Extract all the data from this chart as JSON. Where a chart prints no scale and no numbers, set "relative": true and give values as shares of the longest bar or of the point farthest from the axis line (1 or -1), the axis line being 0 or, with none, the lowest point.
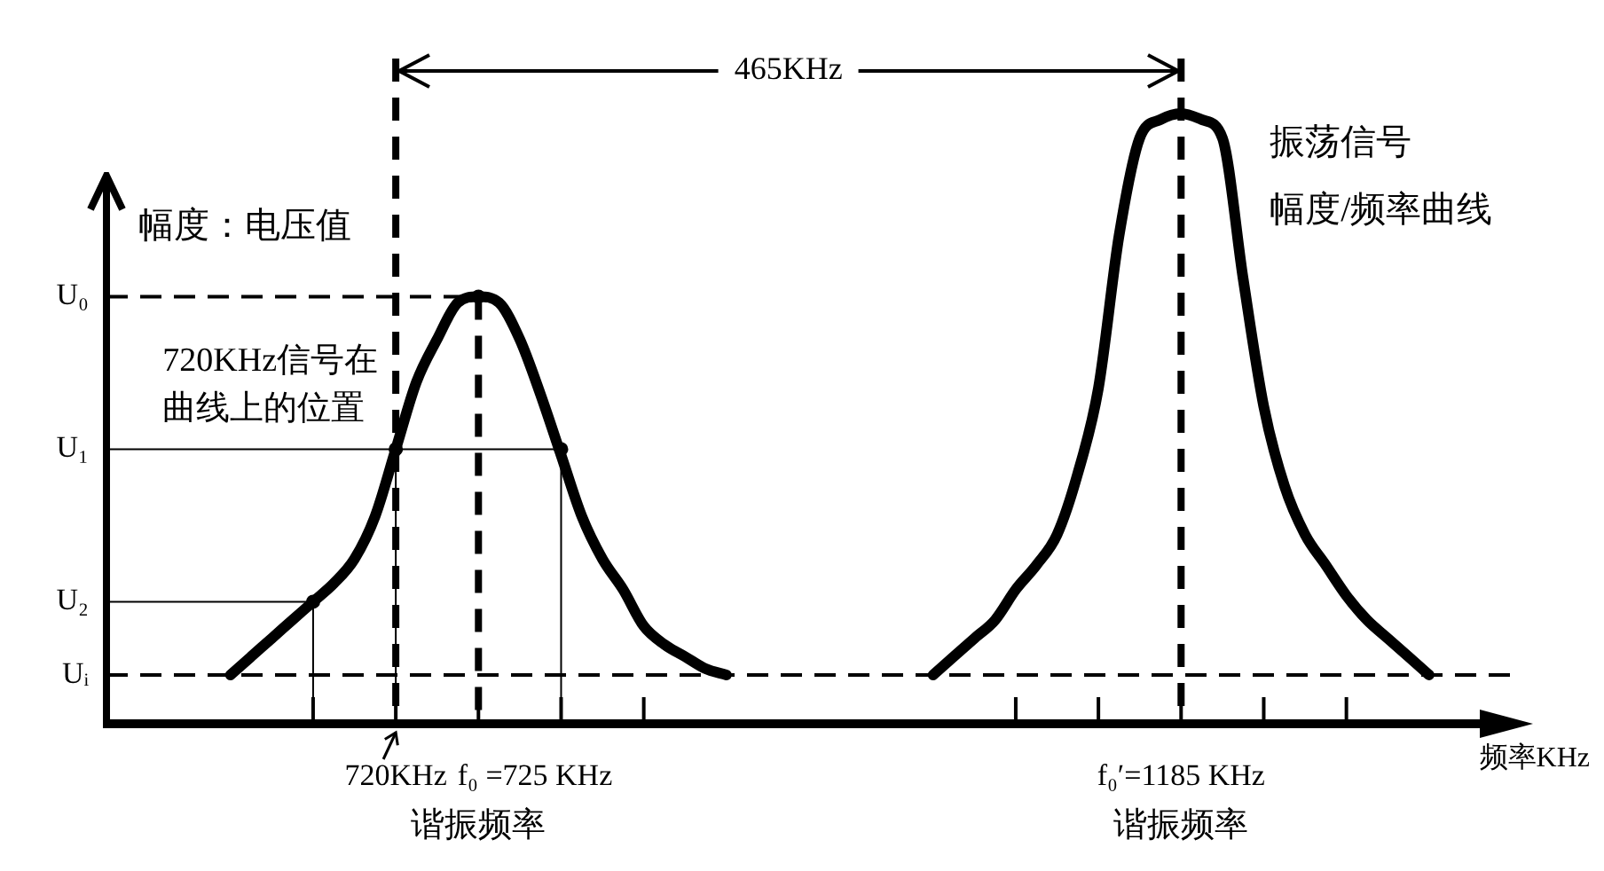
{
  "chart_data": {
    "type": "line",
    "relative": true,
    "xlabel": "频率KHz",
    "ylabel": "幅度：电压值",
    "categories": [
      null,
      null,
      null,
      null,
      null,
      null,
      null,
      null,
      null,
      null,
      null,
      null,
      null,
      null,
      "720KHz",
      null,
      null,
      null,
      null,
      null,
      null,
      null,
      null,
      null,
      null,
      null,
      null,
      null,
      null,
      null,
      null,
      null,
      null,
      null,
      null,
      null,
      null,
      null,
      null,
      null,
      null,
      null,
      null,
      null,
      null,
      null,
      null,
      null,
      null,
      null,
      null,
      null,
      "f₀′=1185 KHz",
      null,
      null,
      null,
      null,
      null,
      null,
      null,
      null,
      null,
      null,
      null,
      null,
      null,
      null,
      null,
      null
    ],
    "series": [
      {
        "color": "#000000",
        "values": [
          null,
          null,
          null,
          null,
          null,
          null,
          0.08,
          0.11,
          0.14,
          0.17,
          0.2,
          0.23,
          0.27,
          0.34,
          0.45,
          0.56,
          0.63,
          0.69,
          0.7,
          0.69,
          0.63,
          0.54,
          0.44,
          0.34,
          0.27,
          0.22,
          0.16,
          0.13,
          0.11,
          0.09,
          0.08,
          null,
          null,
          null,
          null,
          null,
          null,
          null,
          null,
          null,
          null,
          null,
          null,
          null,
          null,
          null,
          null,
          null,
          null,
          null,
          null,
          null,
          null,
          null,
          null,
          null,
          null,
          null,
          null,
          null,
          null,
          null,
          null,
          null,
          null,
          null,
          null,
          null,
          null
        ]
      },
      {
        "color": "#000000",
        "values": [
          null,
          null,
          null,
          null,
          null,
          null,
          null,
          null,
          null,
          null,
          null,
          null,
          null,
          null,
          null,
          null,
          null,
          null,
          null,
          null,
          null,
          null,
          null,
          null,
          null,
          null,
          null,
          null,
          null,
          null,
          null,
          null,
          null,
          null,
          null,
          null,
          null,
          null,
          null,
          null,
          0.08,
          0.11,
          0.14,
          0.17,
          0.22,
          0.26,
          0.31,
          0.41,
          0.55,
          0.8,
          0.96,
          0.99,
          1,
          0.99,
          0.96,
          0.73,
          0.52,
          0.39,
          0.31,
          0.26,
          0.21,
          0.17,
          0.14,
          0.11,
          0.08,
          null,
          null,
          null,
          null
        ]
      },
      {
        "type": "lollipop",
        "color": "#000000",
        "values": [
          null,
          null,
          null,
          null,
          null,
          null,
          null,
          null,
          null,
          null,
          0.2,
          null,
          null,
          null,
          0.45,
          null,
          null,
          null,
          null,
          null,
          null,
          null,
          0.45,
          null,
          null,
          null,
          null,
          null,
          null,
          null,
          null,
          null,
          null,
          null,
          null,
          null,
          null,
          null,
          null,
          null,
          null,
          null,
          null,
          null,
          null,
          null,
          null,
          null,
          null,
          null,
          null,
          null,
          null,
          null,
          null,
          null,
          null,
          null,
          null,
          null,
          null,
          null,
          null,
          null,
          null,
          null,
          null,
          null,
          null
        ]
      },
      {
        "type": "lollipop",
        "color": "#000000",
        "line_style": "dashed",
        "values": [
          null,
          null,
          null,
          null,
          null,
          null,
          null,
          null,
          null,
          null,
          null,
          null,
          null,
          null,
          null,
          null,
          null,
          null,
          0.7,
          null,
          null,
          null,
          null,
          null,
          null,
          null,
          null,
          null,
          null,
          null,
          null,
          null,
          null,
          null,
          null,
          null,
          null,
          null,
          null,
          null,
          null,
          null,
          null,
          null,
          null,
          null,
          null,
          null,
          null,
          null,
          null,
          null,
          null,
          null,
          null,
          null,
          null,
          null,
          null,
          null,
          null,
          null,
          null,
          null,
          null,
          null,
          null,
          null,
          null
        ]
      }
    ],
    "ref_lines": [
      {
        "axis": "y",
        "value": 0.7,
        "label": "U₀",
        "line_style": "dashed"
      },
      {
        "axis": "y",
        "value": 0.45,
        "label": "U₁",
        "line_style": "solid"
      },
      {
        "axis": "y",
        "value": 0.2,
        "label": "U₂",
        "line_style": "solid"
      },
      {
        "axis": "y",
        "value": 0.08,
        "label": "Uᵢ",
        "line_style": "dashed"
      },
      {
        "axis": "x",
        "value": "720KHz",
        "line_style": "dashed"
      },
      {
        "axis": "x",
        "value": "f₀′=1185 KHz",
        "line_style": "dashed"
      }
    ],
    "annotations": [
      "465KHz",
      "振荡信号",
      "幅度/频率曲线",
      {
        "text": "720KHz信号在曲线上的位置",
        "x": "720KHz",
        "y": 0.45
      },
      "f₀ =725 KHz",
      "谐振频率",
      "谐振频率"
    ]
  }
}
